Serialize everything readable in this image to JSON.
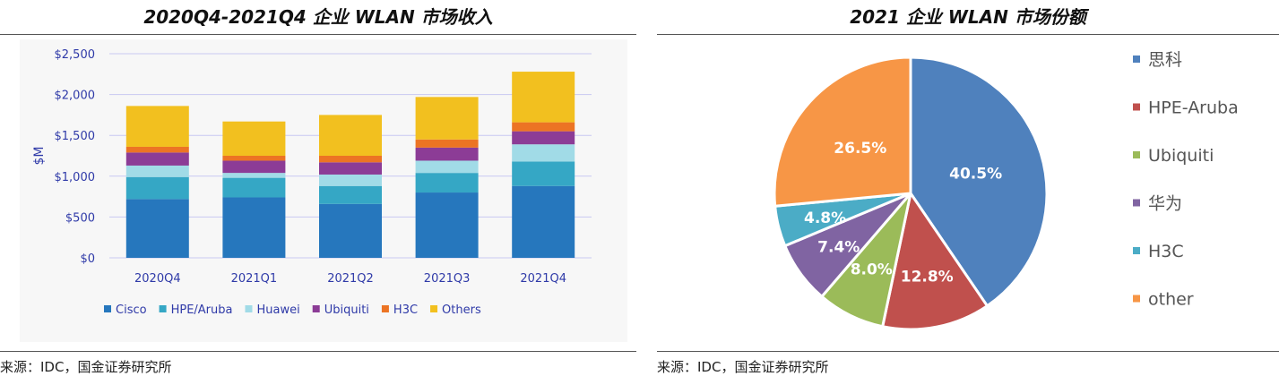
{
  "left": {
    "title": "2020Q4-2021Q4 企业 WLAN 市场收入",
    "source": "来源：IDC，国金证券研究所"
  },
  "right": {
    "title": "2021 企业 WLAN 市场份额",
    "source": "来源：IDC，国金证券研究所"
  },
  "colors": {
    "Cisco": "#2677bd",
    "HPE/Aruba": "#35a7c5",
    "Huawei": "#a1dbe7",
    "Ubiquiti": "#8c3c96",
    "H3C": "#ec7424",
    "Others": "#f2c01f",
    "pie_cisco": "#4f81bd",
    "pie_hpe": "#c0504d",
    "pie_ubiquiti": "#9bbb59",
    "pie_huawei": "#8064a2",
    "pie_h3c": "#4bacc6",
    "pie_other": "#f79646"
  },
  "chart_data": [
    {
      "type": "bar",
      "stacked": true,
      "title": "2020Q4-2021Q4 企业 WLAN 市场收入",
      "xlabel": "",
      "ylabel": "$M",
      "ylim": [
        0,
        2500
      ],
      "yticks": [
        0,
        500,
        1000,
        1500,
        2000,
        2500
      ],
      "ytick_labels": [
        "$0",
        "$500",
        "$1,000",
        "$1,500",
        "$2,000",
        "$2,500"
      ],
      "grid": true,
      "legend_position": "bottom",
      "categories": [
        "2020Q4",
        "2021Q1",
        "2021Q2",
        "2021Q3",
        "2021Q4"
      ],
      "series": [
        {
          "name": "Cisco",
          "values": [
            720,
            740,
            660,
            800,
            880
          ]
        },
        {
          "name": "HPE/Aruba",
          "values": [
            270,
            240,
            220,
            240,
            300
          ]
        },
        {
          "name": "Huawei",
          "values": [
            140,
            60,
            140,
            150,
            210
          ]
        },
        {
          "name": "Ubiquiti",
          "values": [
            160,
            150,
            150,
            160,
            160
          ]
        },
        {
          "name": "H3C",
          "values": [
            70,
            60,
            80,
            100,
            110
          ]
        },
        {
          "name": "Others",
          "values": [
            500,
            420,
            500,
            520,
            620
          ]
        }
      ]
    },
    {
      "type": "pie",
      "title": "2021 企业 WLAN 市场份额",
      "legend_position": "right",
      "slices": [
        {
          "label": "思科",
          "value": 40.5,
          "display": "40.5%",
          "color_key": "pie_cisco"
        },
        {
          "label": "HPE-Aruba",
          "value": 12.8,
          "display": "12.8%",
          "color_key": "pie_hpe"
        },
        {
          "label": "Ubiquiti",
          "value": 8.0,
          "display": "8.0%",
          "color_key": "pie_ubiquiti"
        },
        {
          "label": "华为",
          "value": 7.4,
          "display": "7.4%",
          "color_key": "pie_huawei"
        },
        {
          "label": "H3C",
          "value": 4.8,
          "display": "4.8%",
          "color_key": "pie_h3c"
        },
        {
          "label": "other",
          "value": 26.5,
          "display": "26.5%",
          "color_key": "pie_other"
        }
      ]
    }
  ]
}
